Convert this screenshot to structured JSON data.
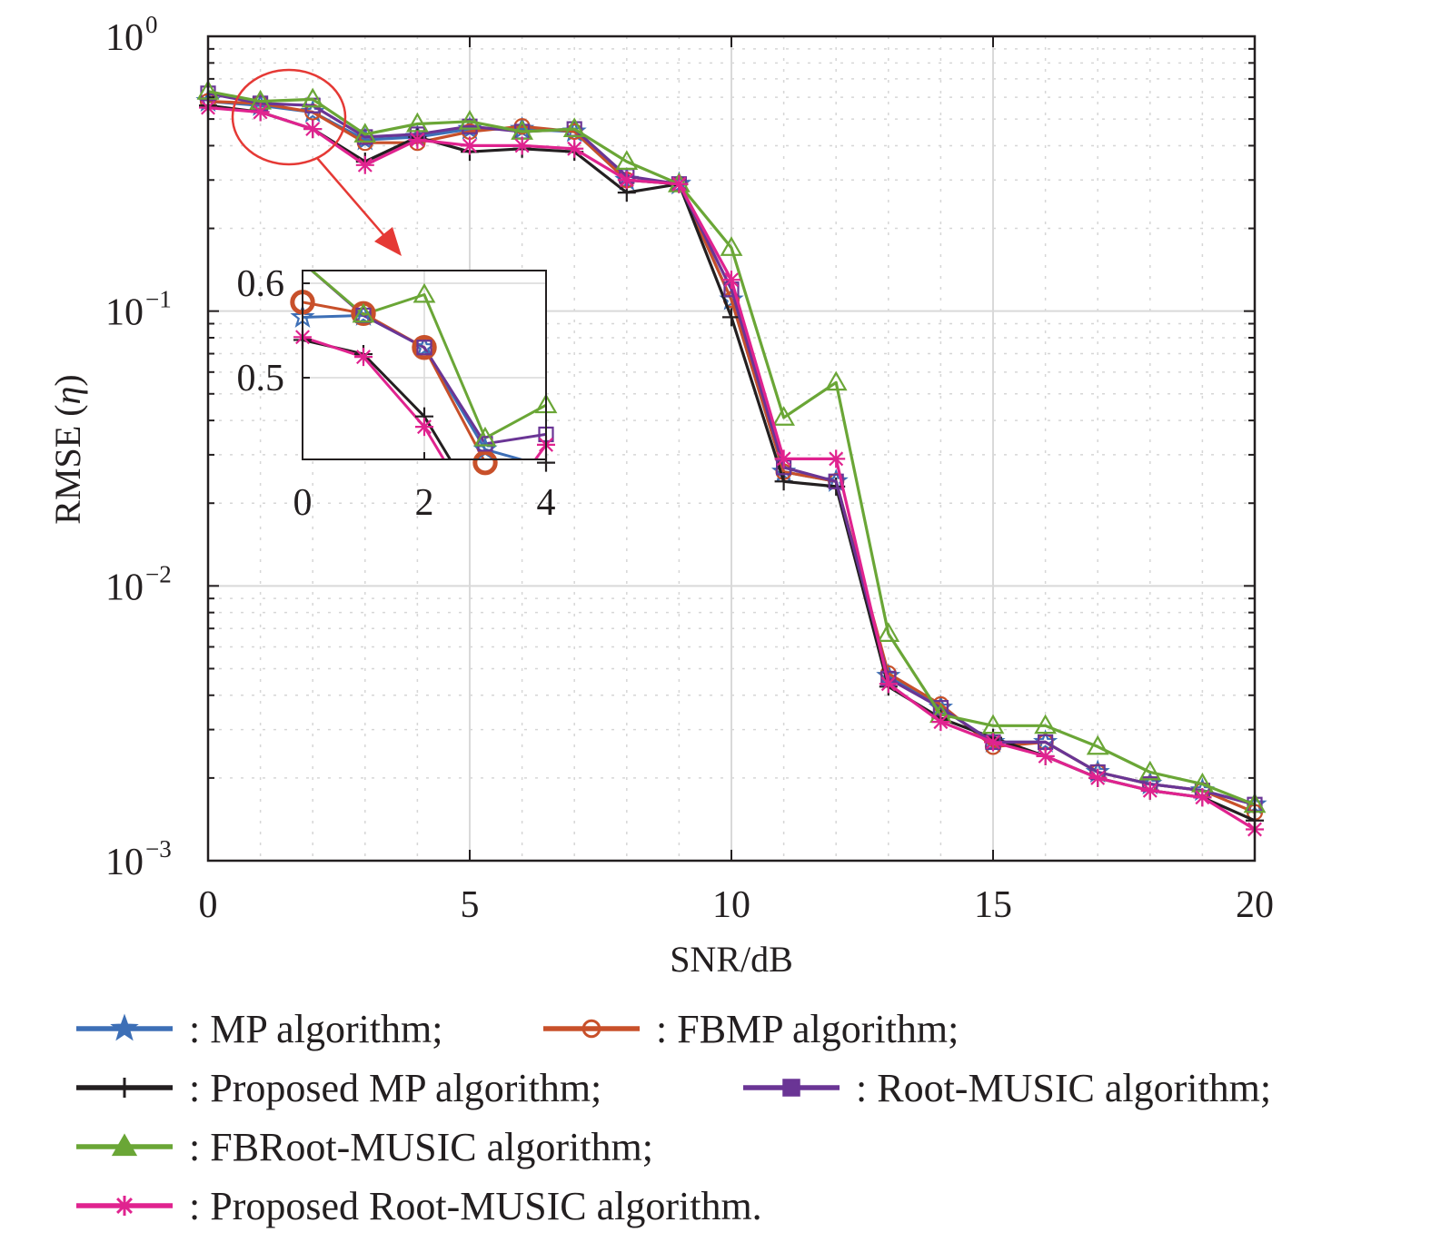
{
  "chart_data": {
    "type": "line",
    "title": "",
    "xlabel": "SNR/dB",
    "ylabel_main": "RMSE (",
    "ylabel_sym": "η",
    "ylabel_close": ")",
    "yscale": "log",
    "xlim": [
      0,
      20
    ],
    "ylim": [
      0.001,
      1
    ],
    "grid": true,
    "xticks": [
      0,
      5,
      10,
      15,
      20
    ],
    "xtick_labels": [
      "0",
      "5",
      "10",
      "15",
      "20"
    ],
    "yticks": [
      0.001,
      0.01,
      0.1,
      1
    ],
    "ytick_base": [
      "10",
      "10",
      "10",
      "10"
    ],
    "ytick_exp": [
      "−3",
      "−2",
      "−1",
      "0"
    ],
    "x": [
      0,
      1,
      2,
      3,
      4,
      5,
      6,
      7,
      8,
      9,
      10,
      11,
      12,
      13,
      14,
      15,
      16,
      17,
      18,
      19,
      20
    ],
    "series": [
      {
        "name": "MP algorithm;",
        "color": "#3d6fb6",
        "marker": "star",
        "values": [
          0.58,
          0.56,
          0.53,
          0.42,
          0.43,
          0.46,
          0.46,
          0.45,
          0.3,
          0.29,
          0.11,
          0.026,
          0.024,
          0.0047,
          0.0036,
          0.0027,
          0.0027,
          0.0021,
          0.0019,
          0.0018,
          0.0016
        ]
      },
      {
        "name": "FBMP algorithm;",
        "color": "#c8502a",
        "marker": "circle",
        "values": [
          0.58,
          0.57,
          0.53,
          0.41,
          0.41,
          0.45,
          0.47,
          0.45,
          0.3,
          0.29,
          0.11,
          0.026,
          0.024,
          0.0048,
          0.0037,
          0.0026,
          0.0027,
          0.0021,
          0.0019,
          0.0018,
          0.0015
        ]
      },
      {
        "name": "Proposed MP algorithm;",
        "color": "#231f20",
        "marker": "plus",
        "values": [
          0.56,
          0.53,
          0.46,
          0.35,
          0.43,
          0.38,
          0.39,
          0.38,
          0.27,
          0.29,
          0.095,
          0.024,
          0.023,
          0.0043,
          0.0033,
          0.0028,
          0.0024,
          0.002,
          0.0018,
          0.0017,
          0.0014
        ]
      },
      {
        "name": "Root-MUSIC algorithm;",
        "color": "#6a3595",
        "marker": "square",
        "values": [
          0.62,
          0.57,
          0.56,
          0.43,
          0.44,
          0.47,
          0.45,
          0.46,
          0.31,
          0.29,
          0.12,
          0.027,
          0.024,
          0.0046,
          0.0036,
          0.0027,
          0.0027,
          0.0021,
          0.0019,
          0.0018,
          0.0016
        ]
      },
      {
        "name": "FBRoot-MUSIC algorithm;",
        "color": "#6aa636",
        "marker": "triangle",
        "values": [
          0.63,
          0.58,
          0.59,
          0.44,
          0.48,
          0.49,
          0.45,
          0.46,
          0.35,
          0.29,
          0.17,
          0.041,
          0.055,
          0.0067,
          0.0034,
          0.0031,
          0.0031,
          0.0026,
          0.0021,
          0.0019,
          0.0016
        ]
      },
      {
        "name": "Proposed Root-MUSIC algorithm.",
        "color": "#e0238f",
        "marker": "asterisk",
        "values": [
          0.55,
          0.53,
          0.46,
          0.34,
          0.42,
          0.4,
          0.4,
          0.39,
          0.3,
          0.29,
          0.13,
          0.029,
          0.029,
          0.0044,
          0.0032,
          0.0027,
          0.0024,
          0.002,
          0.0018,
          0.0017,
          0.0013
        ]
      }
    ],
    "inset": {
      "xlim": [
        0,
        4
      ],
      "ylim": [
        0.4135,
        0.6135
      ],
      "xticks": [
        0,
        2,
        4
      ],
      "xtick_labels": [
        "0",
        "2",
        "4"
      ],
      "yticks": [
        0.5,
        0.6
      ],
      "ytick_labels": [
        "0.5",
        "0.6"
      ],
      "x": [
        0,
        1,
        2,
        3,
        4
      ],
      "series": [
        {
          "color": "#3d6fb6",
          "marker": "star",
          "values": [
            0.564,
            0.566,
            0.532,
            0.424,
            0.406
          ]
        },
        {
          "color": "#c8502a",
          "marker": "circle",
          "values": [
            0.58,
            0.568,
            0.532,
            0.41,
            0.406
          ]
        },
        {
          "color": "#231f20",
          "marker": "plus",
          "values": [
            0.54,
            0.525,
            0.459,
            0.352,
            0.41
          ]
        },
        {
          "color": "#6a3595",
          "marker": "square",
          "values": [
            0.622,
            0.566,
            0.532,
            0.43,
            0.44
          ]
        },
        {
          "color": "#6aa636",
          "marker": "triangle",
          "values": [
            0.622,
            0.567,
            0.588,
            0.436,
            0.471
          ]
        },
        {
          "color": "#e0238f",
          "marker": "asterisk",
          "values": [
            0.543,
            0.522,
            0.448,
            0.34,
            0.429
          ]
        }
      ]
    },
    "legend": [
      {
        "label": ": MP algorithm;",
        "color": "#3d6fb6",
        "marker": "star"
      },
      {
        "label": ": FBMP algorithm;",
        "color": "#c8502a",
        "marker": "circle"
      },
      {
        "label": ": Proposed MP algorithm;",
        "color": "#231f20",
        "marker": "plus"
      },
      {
        "label": ": Root-MUSIC algorithm;",
        "color": "#6a3595",
        "marker": "square"
      },
      {
        "label": ": FBRoot-MUSIC algorithm;",
        "color": "#6aa636",
        "marker": "triangle"
      },
      {
        "label": ": Proposed Root-MUSIC algorithm.",
        "color": "#e0238f",
        "marker": "asterisk"
      }
    ],
    "annotation_color": "#e53935"
  }
}
